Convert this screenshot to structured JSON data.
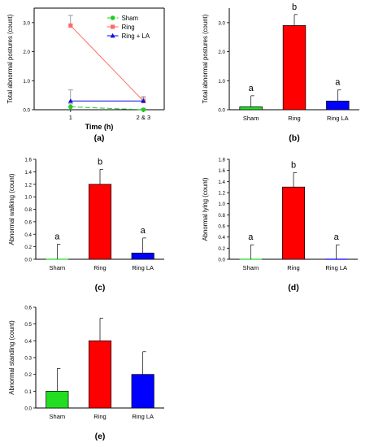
{
  "chart_data": [
    {
      "id": "a",
      "type": "line",
      "panel_label": "(a)",
      "xlabel": "Time (h)",
      "ylabel": "Total abnormal postures (count)",
      "categories": [
        "1",
        "2 & 3"
      ],
      "ylim": [
        0,
        3.5
      ],
      "yticks": [
        "0.0",
        "1.0",
        "2.0",
        "3.0"
      ],
      "series": [
        {
          "name": "Sham",
          "values": [
            0.1,
            0.0
          ],
          "errors": [
            0.1,
            0.05
          ],
          "color": "#22cc22",
          "marker": "circle",
          "dash": "6,3"
        },
        {
          "name": "Ring",
          "values": [
            2.9,
            0.3
          ],
          "errors": [
            0.35,
            0.15
          ],
          "color": "#ff6a6a",
          "marker": "square",
          "dash": ""
        },
        {
          "name": "Ring + LA",
          "values": [
            0.3,
            0.3
          ],
          "errors": [
            0.38,
            0.1
          ],
          "color": "#1111dd",
          "marker": "triangle",
          "dash": ""
        }
      ],
      "legend_position": "top-right"
    },
    {
      "id": "b",
      "type": "bar",
      "panel_label": "(b)",
      "ylabel": "Total abnormal postures (count)",
      "categories": [
        "Sham",
        "Ring",
        "Ring LA"
      ],
      "values": [
        0.1,
        2.9,
        0.3
      ],
      "errors": [
        0.38,
        0.38,
        0.38
      ],
      "letters": [
        "a",
        "b",
        "a"
      ],
      "colors": [
        "#22dd22",
        "#ff0000",
        "#0000ff"
      ],
      "ylim": [
        0,
        3.5
      ],
      "yticks": [
        "0.0",
        "1.0",
        "2.0",
        "3.0"
      ]
    },
    {
      "id": "c",
      "type": "bar",
      "panel_label": "(c)",
      "ylabel": "Abnormal walking (count)",
      "categories": [
        "Sham",
        "Ring",
        "Ring LA"
      ],
      "values": [
        0.0,
        1.2,
        0.1
      ],
      "errors": [
        0.24,
        0.24,
        0.24
      ],
      "letters": [
        "a",
        "b",
        "a"
      ],
      "colors": [
        "#22dd22",
        "#ff0000",
        "#0000ff"
      ],
      "ylim": [
        0,
        1.6
      ],
      "yticks": [
        "0.0",
        "0.2",
        "0.4",
        "0.6",
        "0.8",
        "1.0",
        "1.2",
        "1.4",
        "1.6"
      ]
    },
    {
      "id": "d",
      "type": "bar",
      "panel_label": "(d)",
      "ylabel": "Abnormal lying (count)",
      "categories": [
        "Sham",
        "Ring",
        "Ring LA"
      ],
      "values": [
        0.0,
        1.3,
        0.0
      ],
      "errors": [
        0.26,
        0.26,
        0.26
      ],
      "letters": [
        "a",
        "b",
        "a"
      ],
      "colors": [
        "#22dd22",
        "#ff0000",
        "#0000ff"
      ],
      "ylim": [
        0,
        1.8
      ],
      "yticks": [
        "0.0",
        "0.2",
        "0.4",
        "0.6",
        "0.8",
        "1.0",
        "1.2",
        "1.4",
        "1.6",
        "1.8"
      ]
    },
    {
      "id": "e",
      "type": "bar",
      "panel_label": "(e)",
      "ylabel": "Abnormal standing (count)",
      "categories": [
        "Sham",
        "Ring",
        "Ring LA"
      ],
      "values": [
        0.1,
        0.4,
        0.2
      ],
      "errors": [
        0.135,
        0.135,
        0.135
      ],
      "letters": [
        "",
        "",
        ""
      ],
      "colors": [
        "#22dd22",
        "#ff0000",
        "#0000ff"
      ],
      "ylim": [
        0,
        0.6
      ],
      "yticks": [
        "0.0",
        "0.1",
        "0.2",
        "0.3",
        "0.4",
        "0.5",
        "0.6"
      ]
    }
  ]
}
